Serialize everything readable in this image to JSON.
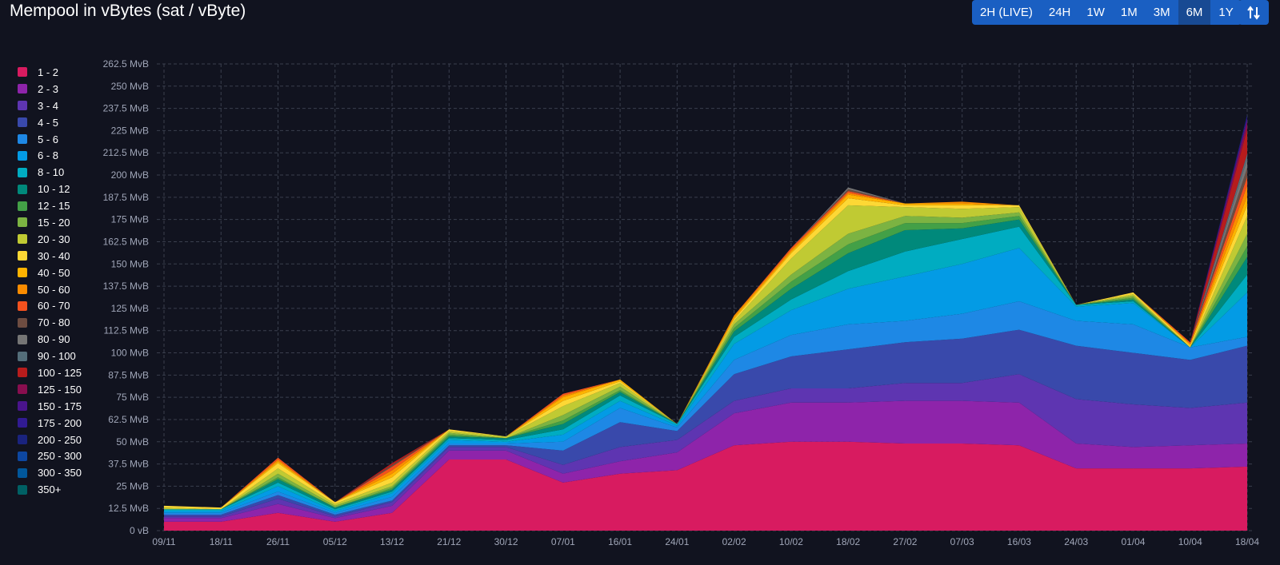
{
  "title": "Mempool in vBytes (sat / vByte)",
  "time_ranges": [
    {
      "label": "2H (LIVE)",
      "active": false
    },
    {
      "label": "24H",
      "active": false
    },
    {
      "label": "1W",
      "active": false
    },
    {
      "label": "1M",
      "active": false
    },
    {
      "label": "3M",
      "active": false
    },
    {
      "label": "6M",
      "active": true
    },
    {
      "label": "1Y",
      "active": false
    }
  ],
  "sort_icon": "sort-arrows-icon",
  "colors": {
    "background": "#11131f",
    "accent": "#1a5fc2",
    "accent_active": "#184a93",
    "grid": "#3a3f4e",
    "axis_text": "#a0a6b8"
  },
  "chart_data": {
    "type": "area",
    "stacked": true,
    "title": "Mempool in vBytes (sat / vByte)",
    "y_unit": "MvB",
    "y_ticks": [
      "0 vB",
      "12.5 MvB",
      "25 MvB",
      "37.5 MvB",
      "50 MvB",
      "62.5 MvB",
      "75 MvB",
      "87.5 MvB",
      "100 MvB",
      "112.5 MvB",
      "125 MvB",
      "137.5 MvB",
      "150 MvB",
      "162.5 MvB",
      "175 MvB",
      "187.5 MvB",
      "200 MvB",
      "212.5 MvB",
      "225 MvB",
      "237.5 MvB",
      "250 MvB",
      "262.5 MvB"
    ],
    "ylim": [
      0,
      262.5
    ],
    "x_ticks": [
      "09/11",
      "18/11",
      "26/11",
      "05/12",
      "13/12",
      "21/12",
      "30/12",
      "07/01",
      "16/01",
      "24/01",
      "02/02",
      "10/02",
      "18/02",
      "27/02",
      "07/03",
      "16/03",
      "24/03",
      "01/04",
      "10/04",
      "18/04"
    ],
    "grid": true,
    "legend_position": "left",
    "x": [
      "09/11",
      "18/11",
      "26/11",
      "05/12",
      "13/12",
      "21/12",
      "30/12",
      "07/01",
      "16/01",
      "24/01",
      "02/02",
      "10/02",
      "18/02",
      "27/02",
      "07/03",
      "16/03",
      "24/03",
      "01/04",
      "10/04",
      "18/04"
    ],
    "series": [
      {
        "name": "1 - 2",
        "color": "#d81b60",
        "values": [
          5,
          5,
          10,
          5,
          10,
          40,
          40,
          27,
          32,
          34,
          48,
          50,
          50,
          49,
          49,
          48,
          35,
          35,
          35,
          36
        ]
      },
      {
        "name": "2 - 3",
        "color": "#8e24aa",
        "values": [
          2,
          2,
          5,
          2,
          4,
          5,
          5,
          5,
          7,
          10,
          18,
          22,
          22,
          24,
          24,
          24,
          14,
          12,
          13,
          13
        ]
      },
      {
        "name": "3 - 4",
        "color": "#5e35b1",
        "values": [
          1,
          1,
          3,
          1,
          2,
          2,
          2,
          5,
          8,
          7,
          7,
          8,
          8,
          10,
          10,
          16,
          25,
          24,
          21,
          23
        ]
      },
      {
        "name": "4 - 5",
        "color": "#3949ab",
        "values": [
          1,
          1,
          2,
          1,
          1,
          1,
          1,
          8,
          14,
          5,
          15,
          18,
          22,
          23,
          25,
          25,
          30,
          29,
          27,
          32
        ]
      },
      {
        "name": "5 - 6",
        "color": "#1e88e5",
        "values": [
          1,
          1,
          2,
          1,
          2,
          1,
          1,
          5,
          8,
          2,
          8,
          12,
          14,
          12,
          14,
          16,
          14,
          16,
          7,
          5
        ]
      },
      {
        "name": "6 - 8",
        "color": "#039be5",
        "values": [
          1,
          1,
          3,
          1,
          2,
          2,
          1,
          4,
          4,
          1,
          9,
          14,
          20,
          25,
          28,
          30,
          8,
          12,
          0,
          25
        ]
      },
      {
        "name": "8 - 10",
        "color": "#00acc1",
        "values": [
          1,
          1,
          2,
          1,
          1,
          1,
          1,
          3,
          3,
          1,
          4,
          6,
          10,
          14,
          14,
          12,
          1,
          1,
          0,
          10
        ]
      },
      {
        "name": "10 - 12",
        "color": "#00897b",
        "values": [
          0,
          0,
          2,
          1,
          1,
          1,
          1,
          3,
          2,
          0,
          3,
          6,
          10,
          12,
          6,
          4,
          0,
          1,
          0,
          10
        ]
      },
      {
        "name": "12 - 15",
        "color": "#43a047",
        "values": [
          0,
          0,
          1,
          0,
          1,
          1,
          0,
          2,
          1,
          0,
          2,
          4,
          5,
          4,
          3,
          2,
          0,
          1,
          0,
          6
        ]
      },
      {
        "name": "15 - 20",
        "color": "#7cb342",
        "values": [
          0,
          0,
          2,
          1,
          1,
          1,
          0,
          3,
          2,
          0,
          2,
          4,
          6,
          4,
          3,
          2,
          0,
          1,
          0,
          7
        ]
      },
      {
        "name": "20 - 30",
        "color": "#c0ca33",
        "values": [
          1,
          0,
          3,
          1,
          2,
          1,
          1,
          5,
          2,
          0,
          2,
          9,
          16,
          5,
          5,
          3,
          0,
          1,
          0,
          10
        ]
      },
      {
        "name": "30 - 40",
        "color": "#fdd835",
        "values": [
          1,
          1,
          3,
          1,
          3,
          1,
          0,
          3,
          1,
          0,
          1,
          3,
          4,
          1,
          2,
          1,
          0,
          1,
          1,
          6
        ]
      },
      {
        "name": "40 - 50",
        "color": "#ffb300",
        "values": [
          0,
          0,
          1,
          0,
          2,
          0,
          0,
          2,
          1,
          0,
          1,
          1,
          2,
          1,
          1,
          0,
          0,
          0,
          1,
          5
        ]
      },
      {
        "name": "50 - 60",
        "color": "#fb8c00",
        "values": [
          0,
          0,
          1,
          0,
          2,
          0,
          0,
          1,
          0,
          0,
          1,
          1,
          1,
          0,
          1,
          0,
          0,
          0,
          0,
          6
        ]
      },
      {
        "name": "60 - 70",
        "color": "#f4511e",
        "values": [
          0,
          0,
          1,
          0,
          2,
          0,
          0,
          1,
          0,
          0,
          0,
          1,
          1,
          0,
          0,
          0,
          0,
          0,
          1,
          5
        ]
      },
      {
        "name": "70 - 80",
        "color": "#6d4c41",
        "values": [
          0,
          0,
          0,
          0,
          1,
          0,
          0,
          0,
          0,
          0,
          0,
          0,
          1,
          0,
          0,
          0,
          0,
          0,
          0,
          5
        ]
      },
      {
        "name": "80 - 90",
        "color": "#757575",
        "values": [
          0,
          0,
          0,
          0,
          0,
          0,
          0,
          0,
          0,
          0,
          0,
          0,
          1,
          0,
          0,
          0,
          0,
          0,
          0,
          5
        ]
      },
      {
        "name": "90 - 100",
        "color": "#546e7a",
        "values": [
          0,
          0,
          0,
          0,
          0,
          0,
          0,
          0,
          0,
          0,
          0,
          0,
          0,
          0,
          0,
          0,
          0,
          0,
          0,
          3
        ]
      },
      {
        "name": "100 - 125",
        "color": "#b71c1c",
        "values": [
          0,
          0,
          0,
          0,
          1,
          0,
          0,
          0,
          0,
          0,
          0,
          0,
          0,
          0,
          0,
          0,
          0,
          0,
          0,
          14
        ]
      },
      {
        "name": "125 - 150",
        "color": "#880e4f",
        "values": [
          0,
          0,
          0,
          0,
          0,
          0,
          0,
          0,
          0,
          0,
          0,
          0,
          0,
          0,
          0,
          0,
          0,
          0,
          0,
          4
        ]
      },
      {
        "name": "150 - 175",
        "color": "#4a148c",
        "values": [
          0,
          0,
          0,
          0,
          0,
          0,
          0,
          0,
          0,
          0,
          0,
          0,
          0,
          0,
          0,
          0,
          0,
          0,
          0,
          2
        ]
      },
      {
        "name": "175 - 200",
        "color": "#311b92",
        "values": [
          0,
          0,
          0,
          0,
          0,
          0,
          0,
          0,
          0,
          0,
          0,
          0,
          0,
          0,
          0,
          0,
          0,
          0,
          0,
          1
        ]
      },
      {
        "name": "200 - 250",
        "color": "#1a237e",
        "values": [
          0,
          0,
          0,
          0,
          0,
          0,
          0,
          0,
          0,
          0,
          0,
          0,
          0,
          0,
          0,
          0,
          0,
          0,
          0,
          1
        ]
      },
      {
        "name": "250 - 300",
        "color": "#0d47a1",
        "values": [
          0,
          0,
          0,
          0,
          0,
          0,
          0,
          0,
          0,
          0,
          0,
          0,
          0,
          0,
          0,
          0,
          0,
          0,
          0,
          0
        ]
      },
      {
        "name": "300 - 350",
        "color": "#01579b",
        "values": [
          0,
          0,
          0,
          0,
          0,
          0,
          0,
          0,
          0,
          0,
          0,
          0,
          0,
          0,
          0,
          0,
          0,
          0,
          0,
          0
        ]
      },
      {
        "name": "350+",
        "color": "#006064",
        "values": [
          0,
          0,
          0,
          0,
          0,
          0,
          0,
          0,
          0,
          0,
          0,
          0,
          0,
          0,
          0,
          0,
          0,
          0,
          0,
          0
        ]
      }
    ]
  }
}
